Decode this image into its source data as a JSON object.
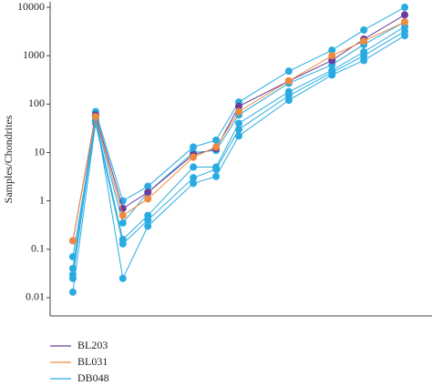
{
  "chart_data": {
    "type": "line",
    "y_label": "Samples/Chondrites",
    "log_y": true,
    "x": [
      1,
      2,
      3.2,
      4.3,
      6.3,
      7.3,
      8.3,
      10.5,
      12.4,
      13.8,
      15.6
    ],
    "xlim": [
      0,
      16.8
    ],
    "ylim": [
      0.0042,
      13000
    ],
    "yticks": [
      0.01,
      0.1,
      1,
      10,
      100,
      1000,
      10000
    ],
    "series": [
      {
        "name": "DB048",
        "color": "#29abe2",
        "values": [
          0.04,
          70,
          1.0,
          2.0,
          13,
          18,
          110,
          480,
          1300,
          3400,
          10000
        ]
      },
      {
        "name": "DB048",
        "color": "#29abe2",
        "values": [
          0.03,
          50,
          0.35,
          1.5,
          10,
          11,
          60,
          270,
          650,
          1700,
          5000
        ]
      },
      {
        "name": "DB048",
        "color": "#29abe2",
        "values": [
          0.07,
          45,
          0.16,
          0.5,
          5,
          5,
          40,
          180,
          500,
          1200,
          4000
        ]
      },
      {
        "name": "DB048",
        "color": "#29abe2",
        "values": [
          0.013,
          40,
          0.13,
          0.4,
          3,
          4.5,
          30,
          150,
          450,
          1000,
          3200
        ]
      },
      {
        "name": "DB048",
        "color": "#29abe2",
        "values": [
          0.025,
          60,
          0.025,
          0.3,
          2.3,
          3.2,
          22,
          120,
          400,
          800,
          2600
        ]
      },
      {
        "name": "BL203",
        "color": "#6a3d9a",
        "values": [
          0.15,
          60,
          0.7,
          1.5,
          9,
          12,
          90,
          300,
          800,
          2200,
          7000
        ]
      },
      {
        "name": "BL031",
        "color": "#f08a3e",
        "values": [
          0.15,
          55,
          0.5,
          1.1,
          8,
          13,
          70,
          300,
          1000,
          2000,
          5000
        ]
      }
    ],
    "legend_order": [
      "BL203",
      "BL031",
      "DB048"
    ]
  }
}
